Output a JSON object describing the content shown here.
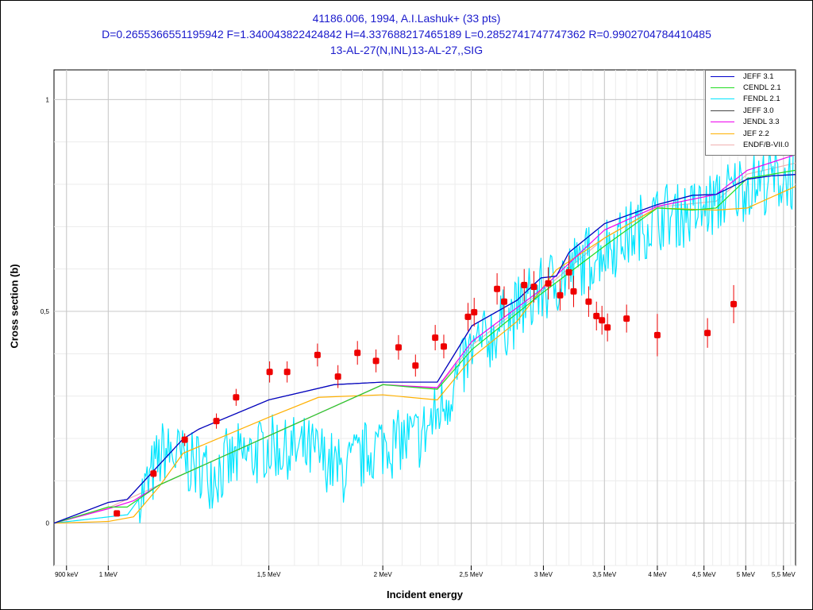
{
  "chart_data": {
    "type": "line",
    "title_lines": [
      "41186.006, 1994, A.I.Lashuk+ (33 pts)",
      "D=0.2655366551195942 F=1.340043822424842 H=4.337688217465189 L=0.2852741747747362 R=0.9902704784410485",
      "13-AL-27(N,INL)13-AL-27,,SIG"
    ],
    "xlabel": "Incident energy",
    "ylabel": "Cross section (b)",
    "x_scale": "log",
    "xlim": [
      0.872,
      5.67
    ],
    "ylim": [
      -0.1,
      1.07
    ],
    "x_ticks": [
      {
        "v": 0.9,
        "label": "900 keV"
      },
      {
        "v": 1,
        "label": "1 MeV"
      },
      {
        "v": 1.5,
        "label": "1,5 MeV"
      },
      {
        "v": 2,
        "label": "2 MeV"
      },
      {
        "v": 2.5,
        "label": "2,5 MeV"
      },
      {
        "v": 3,
        "label": "3 MeV"
      },
      {
        "v": 3.5,
        "label": "3,5 MeV"
      },
      {
        "v": 4,
        "label": "4 MeV"
      },
      {
        "v": 4.5,
        "label": "4,5 MeV"
      },
      {
        "v": 5,
        "label": "5 MeV"
      },
      {
        "v": 5.5,
        "label": "5,5 MeV"
      }
    ],
    "y_ticks": [
      {
        "v": 0,
        "label": "0"
      },
      {
        "v": 0.5,
        "label": "0,5"
      },
      {
        "v": 1,
        "label": "1"
      }
    ],
    "grid": true,
    "legend_position": "top-right",
    "series": [
      {
        "name": "JEFF 3.0",
        "color": "#444444",
        "x": [
          0.872,
          1.0,
          1.049,
          1.208,
          1.257,
          1.5,
          1.769,
          2.0,
          2.295,
          2.505,
          2.806,
          2.982,
          3.1,
          3.2,
          3.5,
          4.0,
          4.37,
          4.64,
          5.02,
          5.34,
          5.67
        ],
        "y": [
          0,
          0.049,
          0.056,
          0.199,
          0.222,
          0.291,
          0.327,
          0.333,
          0.333,
          0.466,
          0.526,
          0.579,
          0.583,
          0.639,
          0.707,
          0.752,
          0.774,
          0.776,
          0.812,
          0.82,
          0.823
        ]
      },
      {
        "name": "ENDF/B-VII.0",
        "color": "#f0b0b0",
        "x": [
          0.872,
          1.0,
          1.137,
          2.0,
          2.295,
          2.505,
          2.982,
          3.5,
          4.0,
          4.64,
          5.02,
          5.67
        ],
        "y": [
          0,
          0.036,
          0.09,
          0.327,
          0.318,
          0.42,
          0.546,
          0.673,
          0.746,
          0.76,
          0.824,
          0.85
        ]
      },
      {
        "name": "FENDL 2.1",
        "color": "#00e5ff",
        "noisy": true,
        "x": [
          0.872,
          1.05,
          1.1,
          1.15,
          1.3,
          1.5,
          1.7,
          1.8,
          2.0,
          2.2,
          2.3,
          2.5,
          2.8,
          3.0,
          3.5,
          4.0,
          4.5,
          5.0,
          5.67
        ],
        "y": [
          0,
          0.02,
          0.08,
          0.17,
          0.12,
          0.18,
          0.16,
          0.12,
          0.19,
          0.2,
          0.26,
          0.4,
          0.5,
          0.55,
          0.65,
          0.72,
          0.74,
          0.8,
          0.82
        ]
      },
      {
        "name": "JEF 2.2",
        "color": "#ffb000",
        "x": [
          0.872,
          1.0,
          1.066,
          1.137,
          1.208,
          1.5,
          1.7,
          2.0,
          2.295,
          2.505,
          2.806,
          3.1,
          3.5,
          4.0,
          4.64,
          5.02,
          5.67
        ],
        "y": [
          0,
          0.004,
          0.015,
          0.086,
          0.165,
          0.25,
          0.297,
          0.303,
          0.291,
          0.391,
          0.476,
          0.598,
          0.673,
          0.744,
          0.739,
          0.744,
          0.795
        ]
      },
      {
        "name": "JENDL 3.3",
        "color": "#ee00ee",
        "x": [
          0.872,
          1.0,
          1.066,
          1.137,
          2.0,
          2.295,
          2.505,
          2.982,
          3.5,
          4.0,
          4.64,
          5.02,
          5.67
        ],
        "y": [
          0,
          0.034,
          0.053,
          0.09,
          0.327,
          0.32,
          0.429,
          0.551,
          0.692,
          0.748,
          0.776,
          0.833,
          0.87
        ]
      },
      {
        "name": "CENDL 2.1",
        "color": "#22dd22",
        "x": [
          0.872,
          1.0,
          1.049,
          1.137,
          2.0,
          2.295,
          2.505,
          2.982,
          3.5,
          4.0,
          4.37,
          4.64,
          5.02,
          5.67
        ],
        "y": [
          0,
          0.038,
          0.038,
          0.09,
          0.327,
          0.316,
          0.41,
          0.541,
          0.654,
          0.744,
          0.739,
          0.744,
          0.814,
          0.833
        ]
      },
      {
        "name": "JEFF 3.1",
        "color": "#0000cc",
        "x": [
          0.872,
          1.0,
          1.049,
          1.208,
          1.257,
          1.5,
          1.769,
          2.0,
          2.295,
          2.505,
          2.806,
          2.982,
          3.1,
          3.2,
          3.5,
          4.0,
          4.37,
          4.64,
          5.02,
          5.34,
          5.67
        ],
        "y": [
          0,
          0.049,
          0.056,
          0.199,
          0.222,
          0.291,
          0.327,
          0.333,
          0.333,
          0.466,
          0.526,
          0.579,
          0.583,
          0.639,
          0.707,
          0.752,
          0.774,
          0.776,
          0.812,
          0.82,
          0.823
        ]
      }
    ],
    "legend_order": [
      "JEFF 3.1",
      "CENDL 2.1",
      "FENDL 2.1",
      "JEFF 3.0",
      "JENDL 3.3",
      "JEF 2.2",
      "ENDF/B-VII.0"
    ],
    "points": {
      "name": "41186.006 Lashuk 1994",
      "color": "#ee0000",
      "x": [
        1.022,
        1.121,
        1.213,
        1.314,
        1.381,
        1.503,
        1.571,
        1.696,
        1.786,
        1.876,
        1.966,
        2.081,
        2.172,
        2.283,
        2.333,
        2.48,
        2.519,
        2.669,
        2.717,
        2.858,
        2.929,
        3.037,
        3.129,
        3.2,
        3.238,
        3.363,
        3.43,
        3.478,
        3.527,
        3.701,
        4.0,
        4.54,
        4.85
      ],
      "y": [
        0.023,
        0.117,
        0.197,
        0.241,
        0.297,
        0.357,
        0.357,
        0.397,
        0.346,
        0.402,
        0.383,
        0.415,
        0.372,
        0.438,
        0.417,
        0.487,
        0.498,
        0.553,
        0.523,
        0.562,
        0.558,
        0.566,
        0.538,
        0.592,
        0.547,
        0.523,
        0.489,
        0.479,
        0.462,
        0.483,
        0.444,
        0.449,
        0.517
      ],
      "err": [
        0.006,
        0.01,
        0.015,
        0.018,
        0.02,
        0.025,
        0.025,
        0.027,
        0.027,
        0.028,
        0.027,
        0.029,
        0.026,
        0.03,
        0.028,
        0.033,
        0.034,
        0.037,
        0.036,
        0.038,
        0.037,
        0.038,
        0.036,
        0.04,
        0.037,
        0.036,
        0.034,
        0.034,
        0.033,
        0.033,
        0.05,
        0.035,
        0.045
      ]
    }
  }
}
